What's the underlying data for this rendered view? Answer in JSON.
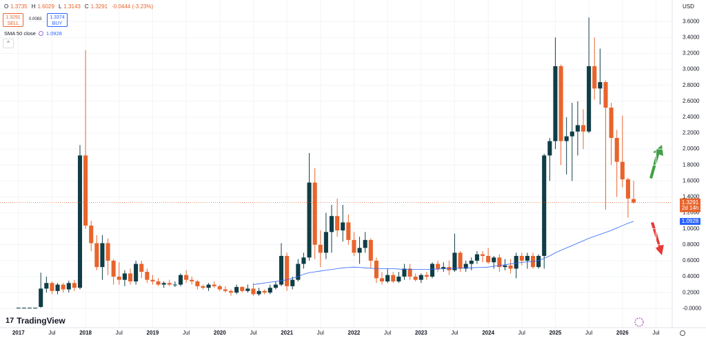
{
  "chart_data": {
    "type": "candlestick",
    "ohlc": [
      {
        "label": "O",
        "value": "1.3735"
      },
      {
        "label": "H",
        "value": "1.6029"
      },
      {
        "label": "L",
        "value": "1.3143"
      },
      {
        "label": "C",
        "value": "1.3291"
      }
    ],
    "change": "-0.0444 (-3.23%)",
    "sell_price": "1.3291",
    "sell_label": "SELL",
    "spread": "0.0083",
    "buy_price": "1.3374",
    "buy_label": "BUY",
    "indicator": "SMA 50 close",
    "indicator_value": "1.0928",
    "currency": "USD",
    "price_label": "1.3291",
    "countdown": "2d 14h",
    "sma_label": "1.0928",
    "brand": "TradingView",
    "up_color": "#0f3d46",
    "down_color": "#e8642c",
    "sma_color": "#2962ff",
    "grid": true,
    "xlim": [
      -3.3,
      116.9
    ],
    "xticks": [
      {
        "value": 0,
        "label": "2017"
      },
      {
        "value": 6,
        "label": "Jul"
      },
      {
        "value": 12,
        "label": "2018"
      },
      {
        "value": 18,
        "label": "Jul"
      },
      {
        "value": 24,
        "label": "2019"
      },
      {
        "value": 30,
        "label": "Jul"
      },
      {
        "value": 36,
        "label": "2020"
      },
      {
        "value": 42,
        "label": "Jul"
      },
      {
        "value": 48,
        "label": "2021"
      },
      {
        "value": 54,
        "label": "Jul"
      },
      {
        "value": 60,
        "label": "2022"
      },
      {
        "value": 66,
        "label": "Jul"
      },
      {
        "value": 72,
        "label": "2023"
      },
      {
        "value": 78,
        "label": "Jul"
      },
      {
        "value": 84,
        "label": "2024"
      },
      {
        "value": 90,
        "label": "Jul"
      },
      {
        "value": 96,
        "label": "2025"
      },
      {
        "value": 102,
        "label": "Jul"
      },
      {
        "value": 108,
        "label": "2026"
      },
      {
        "value": 114,
        "label": "Jul"
      }
    ],
    "ylim": [
      -0.24,
      3.87
    ],
    "yticks": [
      {
        "value": 0,
        "label": "-0.0000"
      },
      {
        "value": 0.2,
        "label": "0.2000"
      },
      {
        "value": 0.4,
        "label": "0.4000"
      },
      {
        "value": 0.6,
        "label": "0.6000"
      },
      {
        "value": 0.8,
        "label": "0.8000"
      },
      {
        "value": 1.0,
        "label": "1.0000"
      },
      {
        "value": 1.2,
        "label": "1.2000"
      },
      {
        "value": 1.4,
        "label": "1.4000"
      },
      {
        "value": 1.6,
        "label": "1.6000"
      },
      {
        "value": 1.8,
        "label": "1.8000"
      },
      {
        "value": 2.0,
        "label": "2.0000"
      },
      {
        "value": 2.2,
        "label": "2.2000"
      },
      {
        "value": 2.4,
        "label": "2.4000"
      },
      {
        "value": 2.6,
        "label": "2.6000"
      },
      {
        "value": 2.8,
        "label": "2.8000"
      },
      {
        "value": 3.0,
        "label": "3.0000"
      },
      {
        "value": 3.2,
        "label": "3.2000"
      },
      {
        "value": 3.4,
        "label": "3.4000"
      },
      {
        "value": 3.6,
        "label": "3.6000"
      }
    ],
    "open": [
      0.01,
      0.01,
      0.01,
      0.01,
      0.02,
      0.25,
      0.32,
      0.22,
      0.3,
      0.24,
      0.32,
      0.26,
      1.92,
      1.04,
      0.82,
      0.52,
      0.82,
      0.6,
      0.4,
      0.36,
      0.44,
      0.34,
      0.56,
      0.46,
      0.36,
      0.34,
      0.3,
      0.32,
      0.3,
      0.3,
      0.42,
      0.36,
      0.34,
      0.28,
      0.26,
      0.3,
      0.28,
      0.24,
      0.22,
      0.2,
      0.27,
      0.22,
      0.25,
      0.18,
      0.22,
      0.2,
      0.26,
      0.3,
      0.66,
      0.28,
      0.36,
      0.56,
      0.64,
      1.58,
      0.8,
      0.7,
      0.96,
      1.16,
      0.98,
      1.08,
      0.86,
      0.7,
      0.76,
      0.86,
      0.6,
      0.38,
      0.34,
      0.42,
      0.34,
      0.4,
      0.5,
      0.4,
      0.36,
      0.42,
      0.4,
      0.56,
      0.5,
      0.52,
      0.48,
      0.7,
      0.5,
      0.56,
      0.6,
      0.68,
      0.66,
      0.58,
      0.64,
      0.52,
      0.54,
      0.5,
      0.66,
      0.6,
      0.66,
      0.52,
      0.66,
      1.92,
      2.1,
      3.04,
      2.1,
      2.16,
      2.22,
      2.3,
      2.22,
      3.04,
      2.76,
      2.84,
      2.52,
      2.14,
      1.84,
      1.62,
      1.3735
    ],
    "high": [
      0.01,
      0.01,
      0.01,
      0.01,
      0.45,
      0.4,
      0.34,
      0.32,
      0.32,
      0.35,
      0.36,
      2.05,
      3.24,
      1.1,
      0.92,
      0.92,
      0.88,
      0.62,
      0.58,
      0.48,
      0.5,
      0.6,
      0.6,
      0.5,
      0.42,
      0.38,
      0.34,
      0.36,
      0.34,
      0.44,
      0.48,
      0.4,
      0.36,
      0.3,
      0.32,
      0.34,
      0.3,
      0.28,
      0.24,
      0.3,
      0.28,
      0.3,
      0.32,
      0.26,
      0.24,
      0.3,
      0.34,
      0.82,
      0.7,
      0.4,
      0.62,
      0.7,
      1.95,
      1.76,
      0.98,
      1.2,
      1.3,
      1.38,
      1.3,
      1.18,
      0.96,
      0.9,
      0.96,
      0.88,
      0.64,
      0.46,
      0.5,
      0.46,
      0.46,
      0.56,
      0.56,
      0.44,
      0.44,
      0.46,
      0.58,
      0.6,
      0.58,
      0.6,
      0.94,
      0.72,
      0.6,
      0.64,
      0.72,
      0.72,
      0.76,
      0.66,
      0.68,
      0.62,
      0.62,
      0.7,
      0.7,
      0.7,
      0.7,
      0.68,
      1.94,
      2.14,
      3.4,
      3.06,
      2.4,
      2.58,
      2.6,
      2.5,
      3.65,
      3.4,
      3.26,
      2.86,
      2.58,
      2.24,
      2.42,
      1.64,
      1.6029
    ],
    "low": [
      0.0,
      0.0,
      0.0,
      0.0,
      0.01,
      0.2,
      0.18,
      0.18,
      0.2,
      0.2,
      0.22,
      0.24,
      1.0,
      0.72,
      0.48,
      0.36,
      0.42,
      0.3,
      0.3,
      0.28,
      0.3,
      0.3,
      0.38,
      0.32,
      0.3,
      0.28,
      0.26,
      0.28,
      0.27,
      0.28,
      0.32,
      0.3,
      0.24,
      0.24,
      0.22,
      0.26,
      0.22,
      0.2,
      0.16,
      0.18,
      0.2,
      0.2,
      0.16,
      0.16,
      0.18,
      0.18,
      0.24,
      0.28,
      0.22,
      0.24,
      0.34,
      0.5,
      0.6,
      0.62,
      0.52,
      0.62,
      0.7,
      0.9,
      0.84,
      0.8,
      0.66,
      0.56,
      0.7,
      0.5,
      0.32,
      0.3,
      0.32,
      0.32,
      0.32,
      0.36,
      0.36,
      0.34,
      0.32,
      0.36,
      0.38,
      0.46,
      0.46,
      0.42,
      0.46,
      0.46,
      0.46,
      0.48,
      0.56,
      0.58,
      0.56,
      0.5,
      0.46,
      0.48,
      0.44,
      0.38,
      0.54,
      0.5,
      0.5,
      0.5,
      0.5,
      1.6,
      2.0,
      1.8,
      1.68,
      1.6,
      1.92,
      2.0,
      2.2,
      2.62,
      2.56,
      1.24,
      1.8,
      1.4,
      1.52,
      1.14,
      1.3143
    ],
    "close": [
      0.01,
      0.01,
      0.01,
      0.01,
      0.25,
      0.32,
      0.22,
      0.3,
      0.24,
      0.32,
      0.26,
      1.92,
      1.04,
      0.82,
      0.52,
      0.82,
      0.6,
      0.4,
      0.36,
      0.44,
      0.34,
      0.56,
      0.46,
      0.36,
      0.34,
      0.3,
      0.32,
      0.3,
      0.3,
      0.42,
      0.36,
      0.34,
      0.28,
      0.26,
      0.3,
      0.28,
      0.24,
      0.22,
      0.2,
      0.27,
      0.22,
      0.25,
      0.18,
      0.22,
      0.2,
      0.26,
      0.3,
      0.66,
      0.28,
      0.36,
      0.56,
      0.64,
      1.58,
      0.8,
      0.7,
      0.96,
      1.16,
      0.98,
      1.08,
      0.86,
      0.7,
      0.76,
      0.86,
      0.6,
      0.38,
      0.34,
      0.42,
      0.34,
      0.4,
      0.5,
      0.4,
      0.36,
      0.42,
      0.4,
      0.56,
      0.5,
      0.52,
      0.48,
      0.7,
      0.5,
      0.56,
      0.6,
      0.68,
      0.66,
      0.58,
      0.64,
      0.52,
      0.54,
      0.5,
      0.66,
      0.6,
      0.66,
      0.52,
      0.66,
      1.92,
      2.1,
      3.04,
      2.1,
      2.16,
      2.22,
      2.3,
      2.22,
      3.04,
      2.76,
      2.84,
      2.52,
      2.14,
      1.84,
      1.62,
      1.38,
      1.3291
    ],
    "sma": [
      null,
      null,
      null,
      null,
      null,
      null,
      null,
      null,
      null,
      null,
      null,
      null,
      null,
      null,
      null,
      null,
      null,
      null,
      null,
      null,
      null,
      null,
      null,
      null,
      null,
      null,
      null,
      null,
      null,
      null,
      null,
      null,
      null,
      null,
      null,
      null,
      null,
      null,
      null,
      null,
      null,
      null,
      0.3,
      0.31,
      0.32,
      0.33,
      0.34,
      0.35,
      0.36,
      0.38,
      0.4,
      0.43,
      0.45,
      0.46,
      0.47,
      0.48,
      0.49,
      0.5,
      0.51,
      0.515,
      0.52,
      0.515,
      0.51,
      0.505,
      0.5,
      0.5,
      0.5,
      0.5,
      0.495,
      0.49,
      0.49,
      0.49,
      0.49,
      0.49,
      0.495,
      0.495,
      0.5,
      0.5,
      0.505,
      0.505,
      0.51,
      0.51,
      0.515,
      0.515,
      0.52,
      0.53,
      0.54,
      0.55,
      0.56,
      0.57,
      0.58,
      0.585,
      0.59,
      0.6,
      0.63,
      0.66,
      0.7,
      0.73,
      0.76,
      0.79,
      0.82,
      0.85,
      0.88,
      0.905,
      0.93,
      0.955,
      0.98,
      1.01,
      1.04,
      1.07,
      1.0928
    ]
  }
}
